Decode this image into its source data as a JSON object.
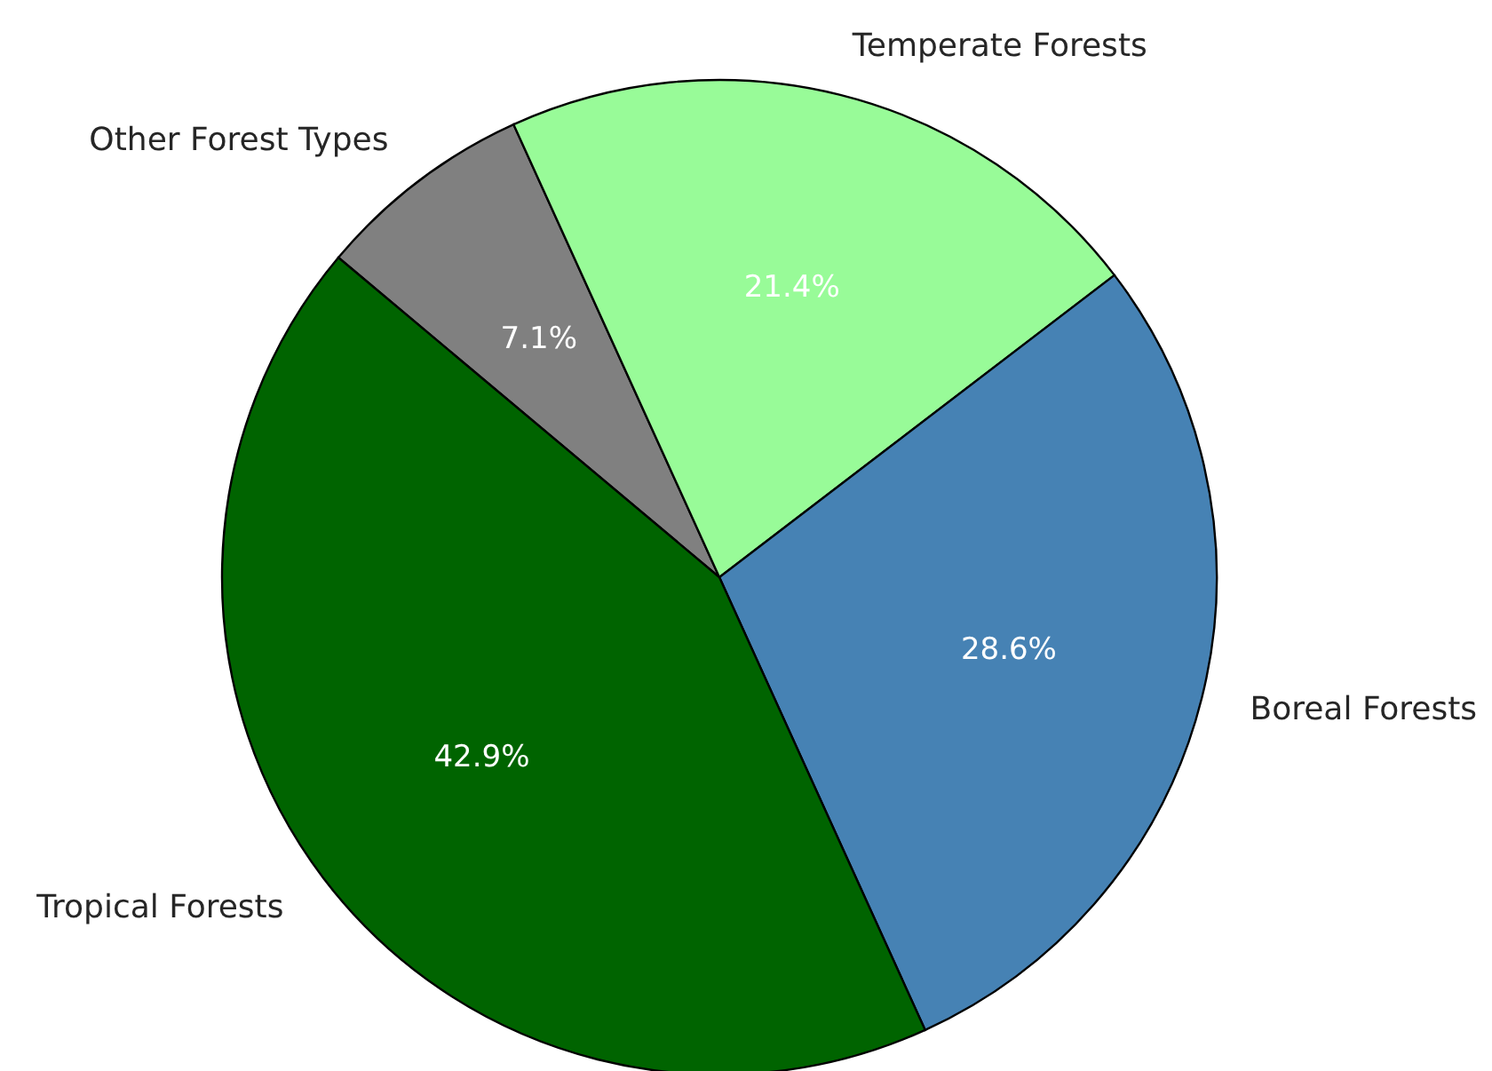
{
  "chart_data": {
    "type": "pie",
    "categories": [
      "Tropical Forests",
      "Boreal Forests",
      "Temperate Forests",
      "Other Forest Types"
    ],
    "values": [
      42.9,
      28.6,
      21.4,
      7.1
    ],
    "colors": [
      "#006400",
      "#4682b4",
      "#98fb98",
      "#808080"
    ],
    "value_labels": [
      "42.9%",
      "28.6%",
      "21.4%",
      "7.1%"
    ]
  }
}
